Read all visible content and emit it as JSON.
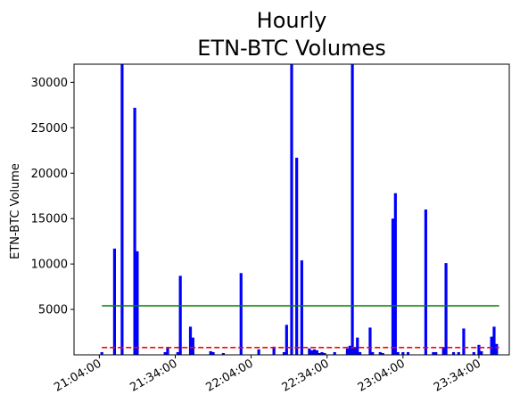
{
  "chart_data": {
    "type": "bar",
    "title": "Hourly",
    "subtitle": "ETN-BTC Volumes",
    "xlabel": "",
    "ylabel": "ETN-BTC Volume",
    "x_unit": "minutes",
    "x_tick_values": [
      64,
      94,
      124,
      154,
      184,
      214
    ],
    "x_tick_labels": [
      "21:04:00",
      "21:34:00",
      "22:04:00",
      "22:34:00",
      "23:04:00",
      "23:34:00"
    ],
    "y_tick_values": [
      5000,
      10000,
      15000,
      20000,
      25000,
      30000
    ],
    "y_tick_labels": [
      "5000",
      "10000",
      "15000",
      "20000",
      "25000",
      "30000"
    ],
    "xlim": [
      54,
      226
    ],
    "ylim": [
      0,
      32000
    ],
    "grid": false,
    "colors": {
      "bars": "#0000ff",
      "mean_line": "#008000",
      "median_line": "#ff0000"
    },
    "reference_lines": [
      {
        "kind": "solid",
        "color": "green",
        "value": 5400,
        "from": 65,
        "to": 222
      },
      {
        "kind": "dashed",
        "color": "red",
        "value": 800,
        "from": 65,
        "to": 222
      }
    ],
    "series": [
      {
        "x": [
          65,
          70,
          73,
          78,
          79,
          90,
          91,
          95,
          96,
          100,
          101,
          108,
          109,
          113,
          120,
          127,
          133,
          137,
          138,
          140,
          142,
          144,
          147,
          148,
          149,
          150,
          151,
          152,
          153,
          157,
          162,
          163,
          164,
          165,
          166,
          167,
          171,
          172,
          175,
          176,
          180,
          181,
          182,
          184,
          186,
          193,
          196,
          197,
          200,
          201,
          204,
          206,
          208,
          212,
          214,
          215,
          219,
          220,
          221
        ],
        "values": [
          300,
          11700,
          32000,
          27200,
          11400,
          300,
          800,
          300,
          8700,
          3100,
          1900,
          400,
          300,
          200,
          9000,
          600,
          900,
          300,
          3300,
          32000,
          21700,
          10400,
          700,
          500,
          600,
          500,
          200,
          300,
          200,
          300,
          700,
          1000,
          32000,
          800,
          1900,
          300,
          3000,
          300,
          300,
          200,
          15000,
          17800,
          300,
          300,
          300,
          16000,
          300,
          300,
          800,
          10100,
          300,
          300,
          2900,
          300,
          1100,
          400,
          2000,
          3100,
          1200
        ]
      }
    ]
  }
}
